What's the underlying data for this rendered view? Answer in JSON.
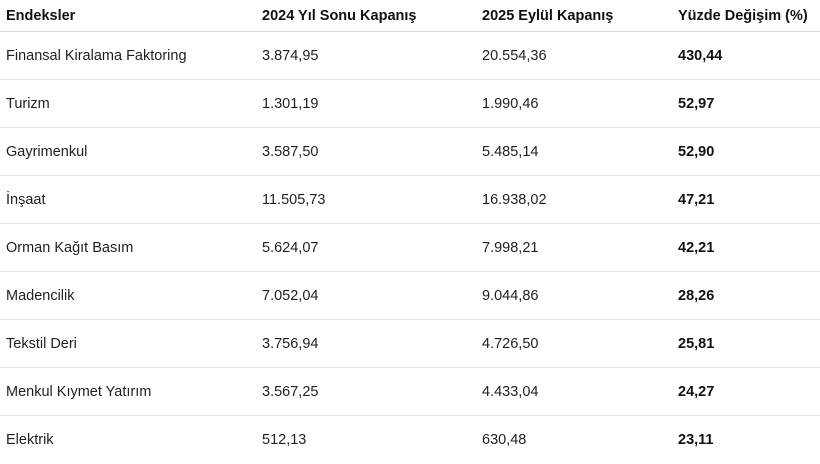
{
  "table": {
    "headers": [
      "Endeksler",
      "2024 Yıl Sonu Kapanış",
      "2025 Eylül Kapanış",
      "Yüzde Değişim (%)"
    ],
    "rows": [
      [
        "Finansal Kiralama Faktoring",
        "3.874,95",
        "20.554,36",
        "430,44"
      ],
      [
        "Turizm",
        "1.301,19",
        "1.990,46",
        "52,97"
      ],
      [
        "Gayrimenkul",
        "3.587,50",
        "5.485,14",
        "52,90"
      ],
      [
        "İnşaat",
        "11.505,73",
        "16.938,02",
        "47,21"
      ],
      [
        "Orman Kağıt Basım",
        "5.624,07",
        "7.998,21",
        "42,21"
      ],
      [
        "Madencilik",
        "7.052,04",
        "9.044,86",
        "28,26"
      ],
      [
        "Tekstil Deri",
        "3.756,94",
        "4.726,50",
        "25,81"
      ],
      [
        "Menkul Kıymet Yatırım",
        "3.567,25",
        "4.433,04",
        "24,27"
      ],
      [
        "Elektrik",
        "512,13",
        "630,48",
        "23,11"
      ]
    ]
  }
}
